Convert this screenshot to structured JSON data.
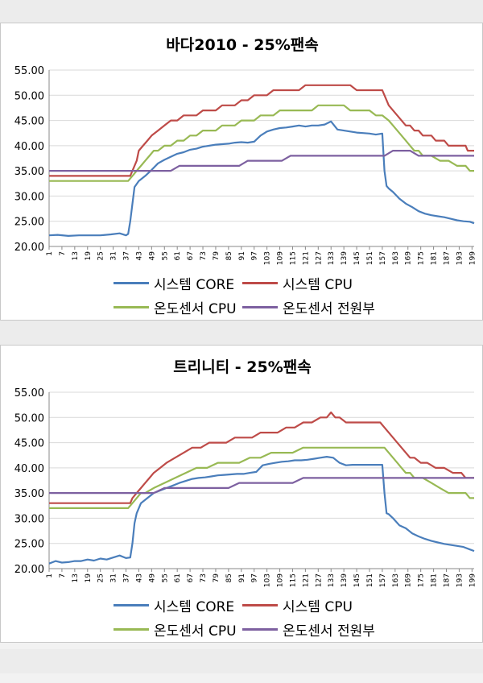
{
  "chart_data": [
    {
      "type": "line",
      "title": "바다2010 - 25%팬속",
      "xlabel": "",
      "ylabel": "",
      "ylim": [
        20,
        55
      ],
      "yticks": [
        "20.00",
        "25.00",
        "30.00",
        "35.00",
        "40.00",
        "45.00",
        "50.00",
        "55.00"
      ],
      "xticks": [
        "1",
        "7",
        "13",
        "19",
        "25",
        "31",
        "37",
        "43",
        "49",
        "55",
        "61",
        "67",
        "73",
        "79",
        "85",
        "91",
        "97",
        "103",
        "109",
        "115",
        "121",
        "127",
        "133",
        "139",
        "145",
        "151",
        "157",
        "163",
        "169",
        "175",
        "181",
        "187",
        "193",
        "199"
      ],
      "grid": true,
      "legend_position": "bottom",
      "series": [
        {
          "name": "시스템 CORE",
          "color": "#4a7ebb",
          "x": [
            1,
            5,
            10,
            15,
            20,
            25,
            30,
            34,
            37,
            38,
            39,
            41,
            43,
            46,
            49,
            52,
            55,
            58,
            61,
            64,
            67,
            70,
            73,
            76,
            79,
            82,
            85,
            88,
            91,
            94,
            97,
            100,
            103,
            106,
            109,
            112,
            115,
            118,
            121,
            124,
            127,
            130,
            133,
            136,
            139,
            142,
            145,
            148,
            151,
            154,
            157,
            158,
            159,
            160,
            162,
            165,
            168,
            171,
            174,
            177,
            180,
            183,
            186,
            189,
            192,
            195,
            198,
            200
          ],
          "y": [
            22.2,
            22.3,
            22.1,
            22.2,
            22.2,
            22.2,
            22.4,
            22.6,
            22.2,
            22.5,
            25,
            31.8,
            33,
            34,
            35.2,
            36.5,
            37.2,
            37.8,
            38.4,
            38.7,
            39.2,
            39.4,
            39.8,
            40.0,
            40.2,
            40.3,
            40.4,
            40.6,
            40.7,
            40.6,
            40.8,
            42,
            42.8,
            43.2,
            43.5,
            43.6,
            43.8,
            44,
            43.8,
            44,
            44,
            44.2,
            44.8,
            43.2,
            43,
            42.8,
            42.6,
            42.5,
            42.4,
            42.2,
            42.4,
            35,
            32,
            31.5,
            30.8,
            29.5,
            28.5,
            27.8,
            27.0,
            26.5,
            26.2,
            26.0,
            25.8,
            25.5,
            25.2,
            25.0,
            24.9,
            24.6
          ]
        },
        {
          "name": "시스템 CPU",
          "color": "#be4b48",
          "x": [
            1,
            39,
            40,
            41,
            42,
            43,
            45,
            47,
            49,
            52,
            55,
            58,
            61,
            64,
            67,
            70,
            73,
            76,
            79,
            82,
            85,
            88,
            91,
            94,
            97,
            100,
            103,
            106,
            109,
            112,
            115,
            118,
            121,
            124,
            127,
            130,
            133,
            136,
            139,
            142,
            145,
            148,
            151,
            154,
            157,
            158,
            160,
            162,
            164,
            166,
            168,
            170,
            172,
            174,
            176,
            178,
            180,
            182,
            184,
            186,
            188,
            190,
            192,
            194,
            196,
            197,
            199,
            200
          ],
          "y": [
            34,
            34,
            35,
            36,
            37,
            39,
            40,
            41,
            42,
            43,
            44,
            45,
            45,
            46,
            46,
            46,
            47,
            47,
            47,
            48,
            48,
            48,
            49,
            49,
            50,
            50,
            50,
            51,
            51,
            51,
            51,
            51,
            52,
            52,
            52,
            52,
            52,
            52,
            52,
            52,
            51,
            51,
            51,
            51,
            51,
            50,
            48,
            47,
            46,
            45,
            44,
            44,
            43,
            43,
            42,
            42,
            42,
            41,
            41,
            41,
            40,
            40,
            40,
            40,
            40,
            39,
            39,
            39
          ]
        },
        {
          "name": "온도센서 CPU",
          "color": "#98b954",
          "x": [
            1,
            38,
            40,
            42,
            44,
            46,
            48,
            50,
            52,
            55,
            58,
            61,
            64,
            67,
            70,
            73,
            76,
            79,
            82,
            85,
            88,
            91,
            94,
            97,
            100,
            103,
            106,
            109,
            112,
            115,
            118,
            121,
            124,
            127,
            130,
            133,
            136,
            139,
            142,
            145,
            148,
            151,
            154,
            157,
            160,
            162,
            164,
            166,
            168,
            170,
            172,
            174,
            176,
            178,
            180,
            184,
            188,
            192,
            196,
            198,
            200
          ],
          "y": [
            33,
            33,
            34,
            35,
            36,
            37,
            38,
            39,
            39,
            40,
            40,
            41,
            41,
            42,
            42,
            43,
            43,
            43,
            44,
            44,
            44,
            45,
            45,
            45,
            46,
            46,
            46,
            47,
            47,
            47,
            47,
            47,
            47,
            48,
            48,
            48,
            48,
            48,
            47,
            47,
            47,
            47,
            46,
            46,
            45,
            44,
            43,
            42,
            41,
            40,
            39,
            39,
            38,
            38,
            38,
            37,
            37,
            36,
            36,
            35,
            35
          ]
        },
        {
          "name": "온도센서 전원부",
          "color": "#7d60a0",
          "x": [
            1,
            42,
            45,
            50,
            54,
            58,
            62,
            66,
            70,
            74,
            78,
            82,
            86,
            90,
            94,
            98,
            102,
            106,
            110,
            114,
            118,
            122,
            126,
            130,
            134,
            138,
            142,
            146,
            150,
            154,
            158,
            162,
            166,
            170,
            174,
            178,
            182,
            186,
            190,
            194,
            198,
            200
          ],
          "y": [
            35,
            35,
            35,
            35,
            35,
            35,
            36,
            36,
            36,
            36,
            36,
            36,
            36,
            36,
            37,
            37,
            37,
            37,
            37,
            38,
            38,
            38,
            38,
            38,
            38,
            38,
            38,
            38,
            38,
            38,
            38,
            39,
            39,
            39,
            38,
            38,
            38,
            38,
            38,
            38,
            38,
            38
          ]
        }
      ]
    },
    {
      "type": "line",
      "title": "트리니티 - 25%팬속",
      "xlabel": "",
      "ylabel": "",
      "ylim": [
        20,
        55
      ],
      "yticks": [
        "20.00",
        "25.00",
        "30.00",
        "35.00",
        "40.00",
        "45.00",
        "50.00",
        "55.00"
      ],
      "xticks": [
        "1",
        "7",
        "13",
        "19",
        "25",
        "31",
        "37",
        "43",
        "49",
        "55",
        "61",
        "67",
        "73",
        "79",
        "85",
        "91",
        "97",
        "103",
        "109",
        "115",
        "121",
        "127",
        "133",
        "139",
        "145",
        "151",
        "157",
        "163",
        "169",
        "175",
        "181",
        "187",
        "193",
        "199"
      ],
      "grid": true,
      "legend_position": "bottom",
      "series": [
        {
          "name": "시스템 CORE",
          "color": "#4a7ebb",
          "x": [
            1,
            4,
            7,
            10,
            13,
            16,
            19,
            22,
            25,
            28,
            31,
            34,
            37,
            39,
            40,
            41,
            42,
            44,
            47,
            50,
            53,
            56,
            59,
            62,
            65,
            68,
            71,
            74,
            77,
            80,
            83,
            86,
            89,
            92,
            95,
            98,
            101,
            104,
            107,
            110,
            113,
            116,
            119,
            122,
            125,
            128,
            131,
            134,
            137,
            140,
            143,
            146,
            149,
            152,
            155,
            157,
            158,
            159,
            160,
            162,
            165,
            168,
            171,
            174,
            177,
            180,
            183,
            186,
            189,
            192,
            195,
            198,
            200
          ],
          "y": [
            21,
            21.5,
            21.2,
            21.3,
            21.5,
            21.5,
            21.8,
            21.6,
            22,
            21.8,
            22.2,
            22.6,
            22.1,
            22.2,
            25,
            29,
            31,
            33,
            34,
            35,
            35.5,
            36,
            36.5,
            37,
            37.4,
            37.8,
            38,
            38.1,
            38.3,
            38.5,
            38.6,
            38.7,
            38.8,
            38.8,
            39,
            39.2,
            40.5,
            40.8,
            41,
            41.2,
            41.3,
            41.5,
            41.5,
            41.6,
            41.8,
            42,
            42.2,
            42,
            41,
            40.5,
            40.6,
            40.6,
            40.6,
            40.6,
            40.6,
            40.6,
            35,
            31,
            30.8,
            30,
            28.6,
            28,
            27,
            26.4,
            25.9,
            25.5,
            25.2,
            24.9,
            24.7,
            24.5,
            24.3,
            23.8,
            23.5
          ]
        },
        {
          "name": "시스템 CPU",
          "color": "#be4b48",
          "x": [
            1,
            39,
            40,
            42,
            44,
            46,
            48,
            50,
            53,
            56,
            60,
            64,
            68,
            72,
            76,
            80,
            84,
            88,
            92,
            96,
            100,
            104,
            108,
            112,
            116,
            120,
            124,
            128,
            131,
            133,
            135,
            137,
            140,
            144,
            148,
            152,
            156,
            158,
            160,
            162,
            164,
            166,
            168,
            170,
            172,
            175,
            178,
            182,
            186,
            190,
            194,
            196,
            198,
            200
          ],
          "y": [
            33,
            33,
            34,
            35,
            36,
            37,
            38,
            39,
            40,
            41,
            42,
            43,
            44,
            44,
            45,
            45,
            45,
            46,
            46,
            46,
            47,
            47,
            47,
            48,
            48,
            49,
            49,
            50,
            50,
            51,
            50,
            50,
            49,
            49,
            49,
            49,
            49,
            48,
            47,
            46,
            45,
            44,
            43,
            42,
            42,
            41,
            41,
            40,
            40,
            39,
            39,
            38,
            38,
            38
          ]
        },
        {
          "name": "온도센서 CPU",
          "color": "#98b954",
          "x": [
            1,
            38,
            40,
            42,
            44,
            46,
            50,
            55,
            60,
            65,
            70,
            75,
            80,
            85,
            90,
            95,
            100,
            105,
            110,
            115,
            120,
            125,
            130,
            135,
            140,
            145,
            150,
            155,
            158,
            160,
            162,
            164,
            166,
            168,
            170,
            172,
            174,
            176,
            180,
            184,
            188,
            192,
            196,
            198,
            200
          ],
          "y": [
            32,
            32,
            33,
            34,
            35,
            35,
            36,
            37,
            38,
            39,
            40,
            40,
            41,
            41,
            41,
            42,
            42,
            43,
            43,
            43,
            44,
            44,
            44,
            44,
            44,
            44,
            44,
            44,
            44,
            43,
            42,
            41,
            40,
            39,
            39,
            38,
            38,
            38,
            37,
            36,
            35,
            35,
            35,
            34,
            34
          ]
        },
        {
          "name": "온도센서 전원부",
          "color": "#7d60a0",
          "x": [
            1,
            45,
            50,
            55,
            60,
            65,
            70,
            75,
            80,
            85,
            90,
            95,
            100,
            105,
            110,
            115,
            120,
            125,
            130,
            140,
            150,
            160,
            170,
            180,
            190,
            200
          ],
          "y": [
            35,
            35,
            35,
            36,
            36,
            36,
            36,
            36,
            36,
            36,
            37,
            37,
            37,
            37,
            37,
            37,
            38,
            38,
            38,
            38,
            38,
            38,
            38,
            38,
            38,
            38
          ]
        }
      ]
    }
  ]
}
